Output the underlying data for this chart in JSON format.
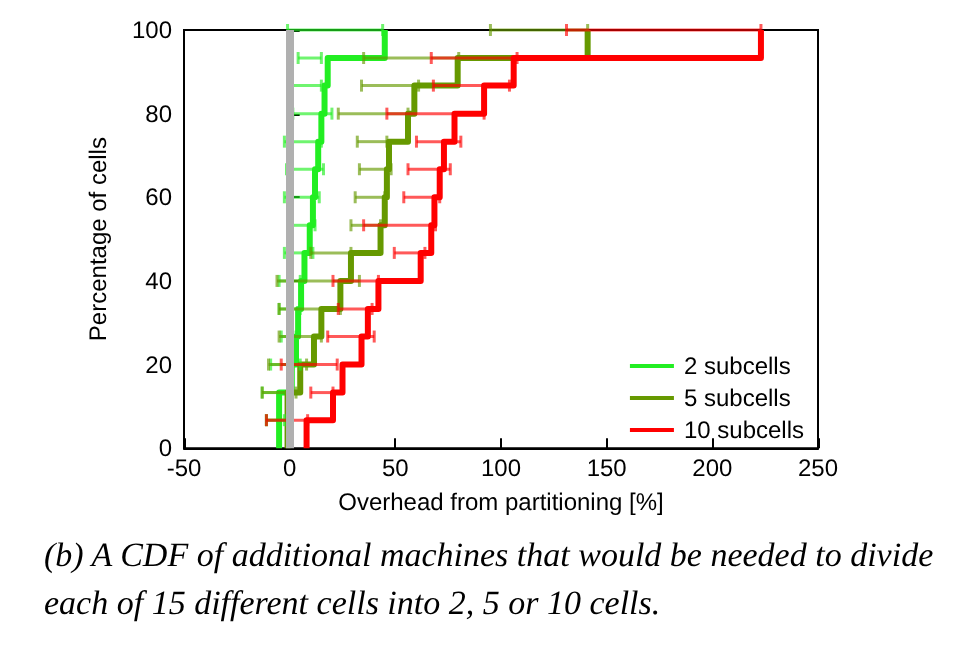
{
  "chart_data": {
    "type": "step",
    "xlabel": "Overhead from partitioning [%]",
    "ylabel": "Percentage of cells",
    "xlim": [
      -50,
      250
    ],
    "xticks": [
      -50,
      0,
      50,
      100,
      150,
      200,
      250
    ],
    "ylim": [
      0,
      100
    ],
    "yticks": [
      0,
      20,
      40,
      60,
      80,
      100
    ],
    "grid": false,
    "legend": "bottom right",
    "marker": "none",
    "line_style": "solid",
    "ref_lines": [
      {
        "axis": "x",
        "value": 0,
        "color": "#b0b0b0"
      }
    ],
    "series": [
      {
        "name": "2 subcells",
        "color": "#22ee22",
        "x": [
          -5,
          -5,
          -5,
          1,
          3,
          4,
          5.4,
          7,
          9.5,
          11,
          12,
          13.5,
          15,
          16.5,
          18,
          45
        ],
        "values": [
          0,
          6.7,
          13.3,
          20,
          26.7,
          33.3,
          40,
          46.7,
          53.3,
          60,
          66.7,
          73.3,
          80,
          86.7,
          93.3,
          100
        ],
        "xerrors": [
          null,
          [
            -11,
            -2.5
          ],
          [
            -13,
            -1
          ],
          [
            -9,
            5
          ],
          [
            -4,
            3
          ],
          [
            -5,
            5
          ],
          [
            -5,
            5
          ],
          [
            -2.5,
            11
          ],
          [
            -1,
            12
          ],
          [
            -2.5,
            14
          ],
          [
            -1.5,
            16
          ],
          [
            -2.5,
            15
          ],
          [
            1.5,
            20
          ],
          [
            0,
            15
          ],
          [
            4,
            15
          ],
          [
            -1,
            44
          ]
        ]
      },
      {
        "name": "5 subcells",
        "color": "#669900",
        "x": [
          -1,
          -1,
          -1,
          5,
          11.5,
          15,
          24,
          29,
          43,
          45,
          46,
          47,
          56,
          59,
          79.5,
          141
        ],
        "values": [
          0,
          6.7,
          13.3,
          20,
          26.7,
          33.3,
          40,
          46.7,
          53.3,
          60,
          66.7,
          73.3,
          80,
          86.7,
          93.3,
          100
        ],
        "xerrors": [
          null,
          [
            -11,
            -1
          ],
          [
            -13,
            3
          ],
          [
            -10,
            8
          ],
          [
            -5,
            15
          ],
          [
            -5,
            24
          ],
          [
            -6,
            33
          ],
          [
            10,
            29
          ],
          [
            29,
            43
          ],
          [
            31,
            45
          ],
          [
            33,
            48
          ],
          [
            32,
            46
          ],
          [
            23,
            56
          ],
          [
            34,
            61
          ],
          [
            35,
            80
          ],
          [
            95,
            141
          ]
        ]
      },
      {
        "name": "10 subcells",
        "color": "#ff0000",
        "x": [
          8,
          8,
          20.5,
          25,
          34,
          37,
          42,
          62,
          67,
          68.5,
          71,
          73,
          78,
          92,
          106,
          223
        ],
        "values": [
          0,
          6.7,
          13.3,
          20,
          26.7,
          33.3,
          40,
          46.7,
          53.3,
          60,
          66.7,
          73.3,
          80,
          86.7,
          93.3,
          100
        ],
        "xerrors": [
          null,
          [
            -11,
            8.5
          ],
          [
            10,
            20.5
          ],
          [
            -4,
            22.5
          ],
          [
            18,
            40
          ],
          [
            23,
            39
          ],
          [
            20.5,
            42
          ],
          [
            49.5,
            64
          ],
          [
            35,
            69
          ],
          [
            54,
            71
          ],
          [
            56,
            76
          ],
          [
            60,
            81
          ],
          [
            46,
            92
          ],
          [
            68,
            104
          ],
          [
            67,
            107.6
          ],
          [
            131,
            223
          ]
        ]
      }
    ],
    "annotations": [
      "(b) A CDF of additional machines that would be needed to divide each of 15 different cells into 2, 5 or 10 cells."
    ]
  }
}
